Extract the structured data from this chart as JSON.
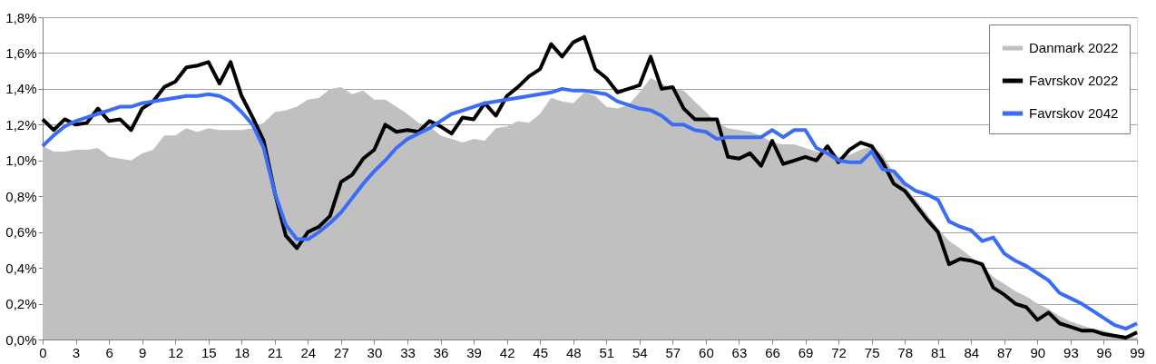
{
  "chart_data": {
    "type": "line",
    "x": [
      0,
      1,
      2,
      3,
      4,
      5,
      6,
      7,
      8,
      9,
      10,
      11,
      12,
      13,
      14,
      15,
      16,
      17,
      18,
      19,
      20,
      21,
      22,
      23,
      24,
      25,
      26,
      27,
      28,
      29,
      30,
      31,
      32,
      33,
      34,
      35,
      36,
      37,
      38,
      39,
      40,
      41,
      42,
      43,
      44,
      45,
      46,
      47,
      48,
      49,
      50,
      51,
      52,
      53,
      54,
      55,
      56,
      57,
      58,
      59,
      60,
      61,
      62,
      63,
      64,
      65,
      66,
      67,
      68,
      69,
      70,
      71,
      72,
      73,
      74,
      75,
      76,
      77,
      78,
      79,
      80,
      81,
      82,
      83,
      84,
      85,
      86,
      87,
      88,
      89,
      90,
      91,
      92,
      93,
      94,
      95,
      96,
      97,
      98,
      99
    ],
    "series": [
      {
        "name": "Danmark 2022",
        "type": "area",
        "color": "#c0c0c0",
        "values": [
          1.08,
          1.05,
          1.05,
          1.06,
          1.06,
          1.07,
          1.02,
          1.01,
          1.0,
          1.04,
          1.06,
          1.14,
          1.14,
          1.18,
          1.16,
          1.18,
          1.17,
          1.17,
          1.17,
          1.18,
          1.21,
          1.27,
          1.28,
          1.3,
          1.34,
          1.35,
          1.4,
          1.41,
          1.37,
          1.39,
          1.34,
          1.34,
          1.3,
          1.26,
          1.21,
          1.19,
          1.14,
          1.12,
          1.1,
          1.12,
          1.11,
          1.18,
          1.19,
          1.22,
          1.21,
          1.26,
          1.35,
          1.33,
          1.32,
          1.38,
          1.36,
          1.3,
          1.29,
          1.31,
          1.38,
          1.46,
          1.43,
          1.4,
          1.39,
          1.33,
          1.27,
          1.21,
          1.18,
          1.17,
          1.16,
          1.14,
          1.1,
          1.09,
          1.09,
          1.07,
          1.05,
          1.04,
          1.02,
          1.03,
          1.06,
          1.08,
          1.03,
          0.93,
          0.86,
          0.78,
          0.7,
          0.62,
          0.55,
          0.51,
          0.46,
          0.41,
          0.35,
          0.31,
          0.27,
          0.24,
          0.2,
          0.17,
          0.13,
          0.1,
          0.08,
          0.06,
          0.05,
          0.03,
          0.02,
          0.01
        ]
      },
      {
        "name": "Favrskov 2022",
        "color": "#000000",
        "values": [
          1.23,
          1.17,
          1.23,
          1.2,
          1.21,
          1.29,
          1.22,
          1.23,
          1.17,
          1.29,
          1.33,
          1.41,
          1.44,
          1.52,
          1.53,
          1.55,
          1.43,
          1.55,
          1.36,
          1.24,
          1.11,
          0.82,
          0.58,
          0.51,
          0.6,
          0.63,
          0.69,
          0.88,
          0.92,
          1.01,
          1.06,
          1.2,
          1.16,
          1.17,
          1.16,
          1.22,
          1.19,
          1.15,
          1.24,
          1.23,
          1.32,
          1.25,
          1.36,
          1.41,
          1.47,
          1.51,
          1.65,
          1.58,
          1.66,
          1.69,
          1.51,
          1.46,
          1.38,
          1.4,
          1.42,
          1.58,
          1.4,
          1.41,
          1.29,
          1.23,
          1.23,
          1.23,
          1.02,
          1.01,
          1.04,
          0.97,
          1.11,
          0.98,
          1.0,
          1.02,
          1.0,
          1.08,
          0.99,
          1.06,
          1.1,
          1.08,
          0.99,
          0.87,
          0.83,
          0.75,
          0.67,
          0.6,
          0.42,
          0.45,
          0.44,
          0.42,
          0.29,
          0.25,
          0.2,
          0.18,
          0.11,
          0.15,
          0.09,
          0.07,
          0.05,
          0.05,
          0.03,
          0.02,
          0.01,
          0.04
        ]
      },
      {
        "name": "Favrskov 2042",
        "color": "#3a6cf4",
        "values": [
          1.08,
          1.14,
          1.19,
          1.22,
          1.24,
          1.26,
          1.28,
          1.3,
          1.3,
          1.32,
          1.33,
          1.34,
          1.35,
          1.36,
          1.36,
          1.37,
          1.36,
          1.33,
          1.27,
          1.2,
          1.07,
          0.82,
          0.64,
          0.56,
          0.56,
          0.6,
          0.65,
          0.71,
          0.79,
          0.87,
          0.94,
          1.0,
          1.07,
          1.12,
          1.15,
          1.18,
          1.22,
          1.26,
          1.28,
          1.3,
          1.32,
          1.33,
          1.34,
          1.35,
          1.36,
          1.37,
          1.38,
          1.4,
          1.39,
          1.39,
          1.38,
          1.37,
          1.33,
          1.31,
          1.29,
          1.28,
          1.25,
          1.2,
          1.2,
          1.17,
          1.16,
          1.12,
          1.13,
          1.13,
          1.13,
          1.13,
          1.17,
          1.13,
          1.17,
          1.17,
          1.07,
          1.04,
          1.0,
          0.99,
          0.99,
          1.05,
          0.95,
          0.94,
          0.87,
          0.83,
          0.81,
          0.78,
          0.66,
          0.63,
          0.61,
          0.55,
          0.57,
          0.48,
          0.44,
          0.41,
          0.37,
          0.33,
          0.26,
          0.23,
          0.2,
          0.16,
          0.12,
          0.08,
          0.06,
          0.09
        ]
      }
    ],
    "xlim": [
      0,
      99
    ],
    "xticks": [
      0,
      3,
      6,
      9,
      12,
      15,
      18,
      21,
      24,
      27,
      30,
      33,
      36,
      39,
      42,
      45,
      48,
      51,
      54,
      57,
      60,
      63,
      66,
      69,
      72,
      75,
      78,
      81,
      84,
      87,
      90,
      93,
      96,
      99
    ],
    "ylim": [
      0,
      1.8
    ],
    "yticks": [
      {
        "value": 0,
        "label": "0,0%"
      },
      {
        "value": 0.2,
        "label": "0,2%"
      },
      {
        "value": 0.4,
        "label": "0,4%"
      },
      {
        "value": 0.6,
        "label": "0,6%"
      },
      {
        "value": 0.8,
        "label": "0,8%"
      },
      {
        "value": 1.0,
        "label": "1,0%"
      },
      {
        "value": 1.2,
        "label": "1,2%"
      },
      {
        "value": 1.4,
        "label": "1,4%"
      },
      {
        "value": 1.6,
        "label": "1,6%"
      },
      {
        "value": 1.8,
        "label": "1,8%"
      }
    ],
    "grid": "y",
    "legend": "top right",
    "marker": "none",
    "line_style": "solid"
  }
}
